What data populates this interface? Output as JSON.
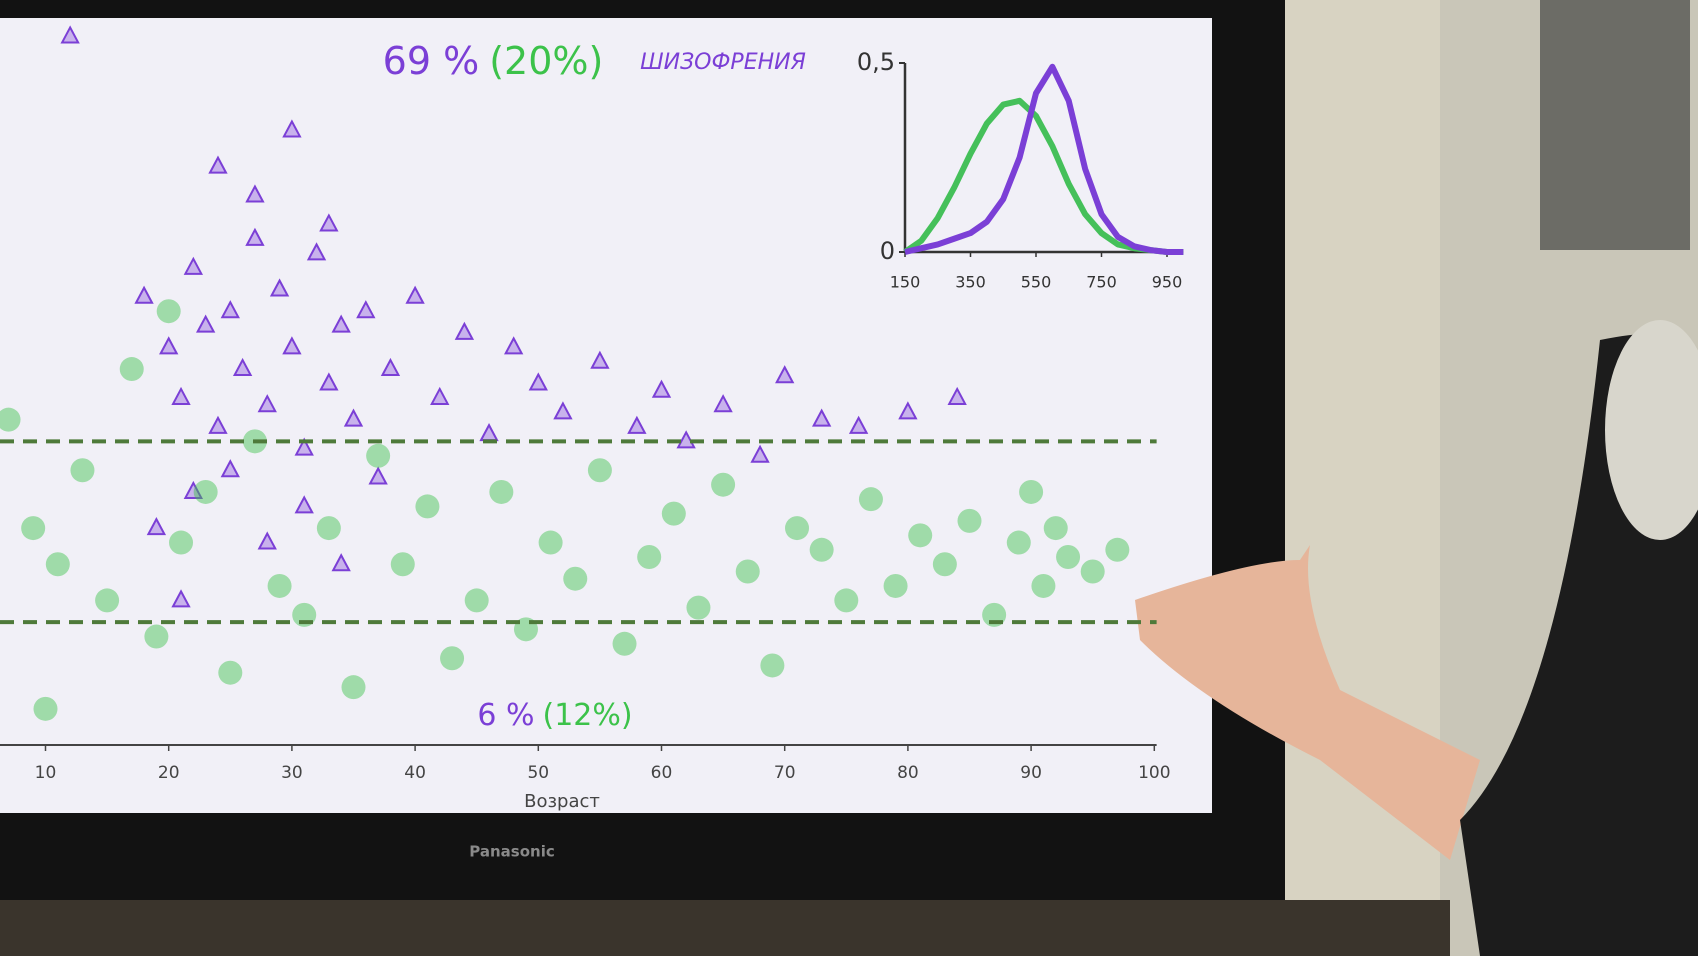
{
  "chart_data": [
    {
      "type": "scatter",
      "annotations": {
        "top_purple": "69 %",
        "top_green": "(20%)",
        "bottom_purple": "6 %",
        "bottom_green": "(12%)"
      },
      "xlabel": "Возраст",
      "xlim": [
        6,
        101
      ],
      "ylim": [
        0,
        100
      ],
      "xticks": [
        10,
        20,
        30,
        40,
        50,
        60,
        70,
        80,
        90,
        100
      ],
      "reference_lines": [
        42,
        17
      ],
      "reference_color": "#4e7a3a",
      "series": [
        {
          "color": "#7b3fd6",
          "marker": "triangle",
          "x": [
            12,
            18,
            20,
            21,
            22,
            23,
            24,
            25,
            26,
            27,
            28,
            29,
            30,
            31,
            32,
            33,
            34,
            35,
            36,
            38,
            40,
            42,
            44,
            46,
            48,
            50,
            52,
            55,
            58,
            60,
            62,
            65,
            68,
            70,
            73,
            76,
            80,
            84,
            19,
            22,
            25,
            28,
            31,
            34,
            37,
            24,
            27,
            30,
            33,
            21
          ],
          "values": [
            98,
            62,
            55,
            48,
            66,
            58,
            44,
            60,
            52,
            70,
            47,
            63,
            55,
            41,
            68,
            50,
            58,
            45,
            60,
            52,
            62,
            48,
            57,
            43,
            55,
            50,
            46,
            53,
            44,
            49,
            42,
            47,
            40,
            51,
            45,
            44,
            46,
            48,
            30,
            35,
            38,
            28,
            33,
            25,
            37,
            80,
            76,
            85,
            72,
            20
          ]
        },
        {
          "color": "#3cc24a",
          "marker": "circle",
          "x": [
            7,
            9,
            11,
            13,
            15,
            17,
            19,
            21,
            23,
            25,
            27,
            29,
            31,
            33,
            35,
            37,
            39,
            41,
            43,
            45,
            47,
            49,
            51,
            53,
            55,
            57,
            59,
            61,
            63,
            65,
            67,
            69,
            71,
            73,
            75,
            77,
            79,
            81,
            83,
            85,
            87,
            89,
            90,
            91,
            92,
            93,
            95,
            97,
            10,
            20
          ],
          "values": [
            45,
            30,
            25,
            38,
            20,
            52,
            15,
            28,
            35,
            10,
            42,
            22,
            18,
            30,
            8,
            40,
            25,
            33,
            12,
            20,
            35,
            16,
            28,
            23,
            38,
            14,
            26,
            32,
            19,
            36,
            24,
            11,
            30,
            27,
            20,
            34,
            22,
            29,
            25,
            31,
            18,
            28,
            35,
            22,
            30,
            26,
            24,
            27,
            5,
            60
          ]
        }
      ]
    },
    {
      "type": "line",
      "title": "ШИЗОФРЕНИЯ",
      "x": [
        150,
        200,
        250,
        300,
        350,
        400,
        450,
        500,
        550,
        600,
        650,
        700,
        750,
        800,
        850,
        900,
        950,
        1000
      ],
      "xlim": [
        150,
        1000
      ],
      "ylim": [
        0,
        0.5
      ],
      "xticks": [
        150,
        350,
        550,
        750,
        950
      ],
      "yticks": [
        0,
        {
          "value": 0.5,
          "label": "0,5"
        }
      ],
      "series": [
        {
          "color": "#45c05a",
          "values": [
            0,
            0.03,
            0.09,
            0.17,
            0.26,
            0.34,
            0.39,
            0.4,
            0.36,
            0.28,
            0.18,
            0.1,
            0.05,
            0.02,
            0.01,
            0.005,
            0,
            0
          ]
        },
        {
          "color": "#7b3fd6",
          "values": [
            0,
            0.01,
            0.02,
            0.035,
            0.05,
            0.08,
            0.14,
            0.25,
            0.42,
            0.49,
            0.4,
            0.22,
            0.1,
            0.04,
            0.015,
            0.005,
            0,
            0
          ]
        }
      ]
    }
  ],
  "bezel_label": "Panasonic"
}
